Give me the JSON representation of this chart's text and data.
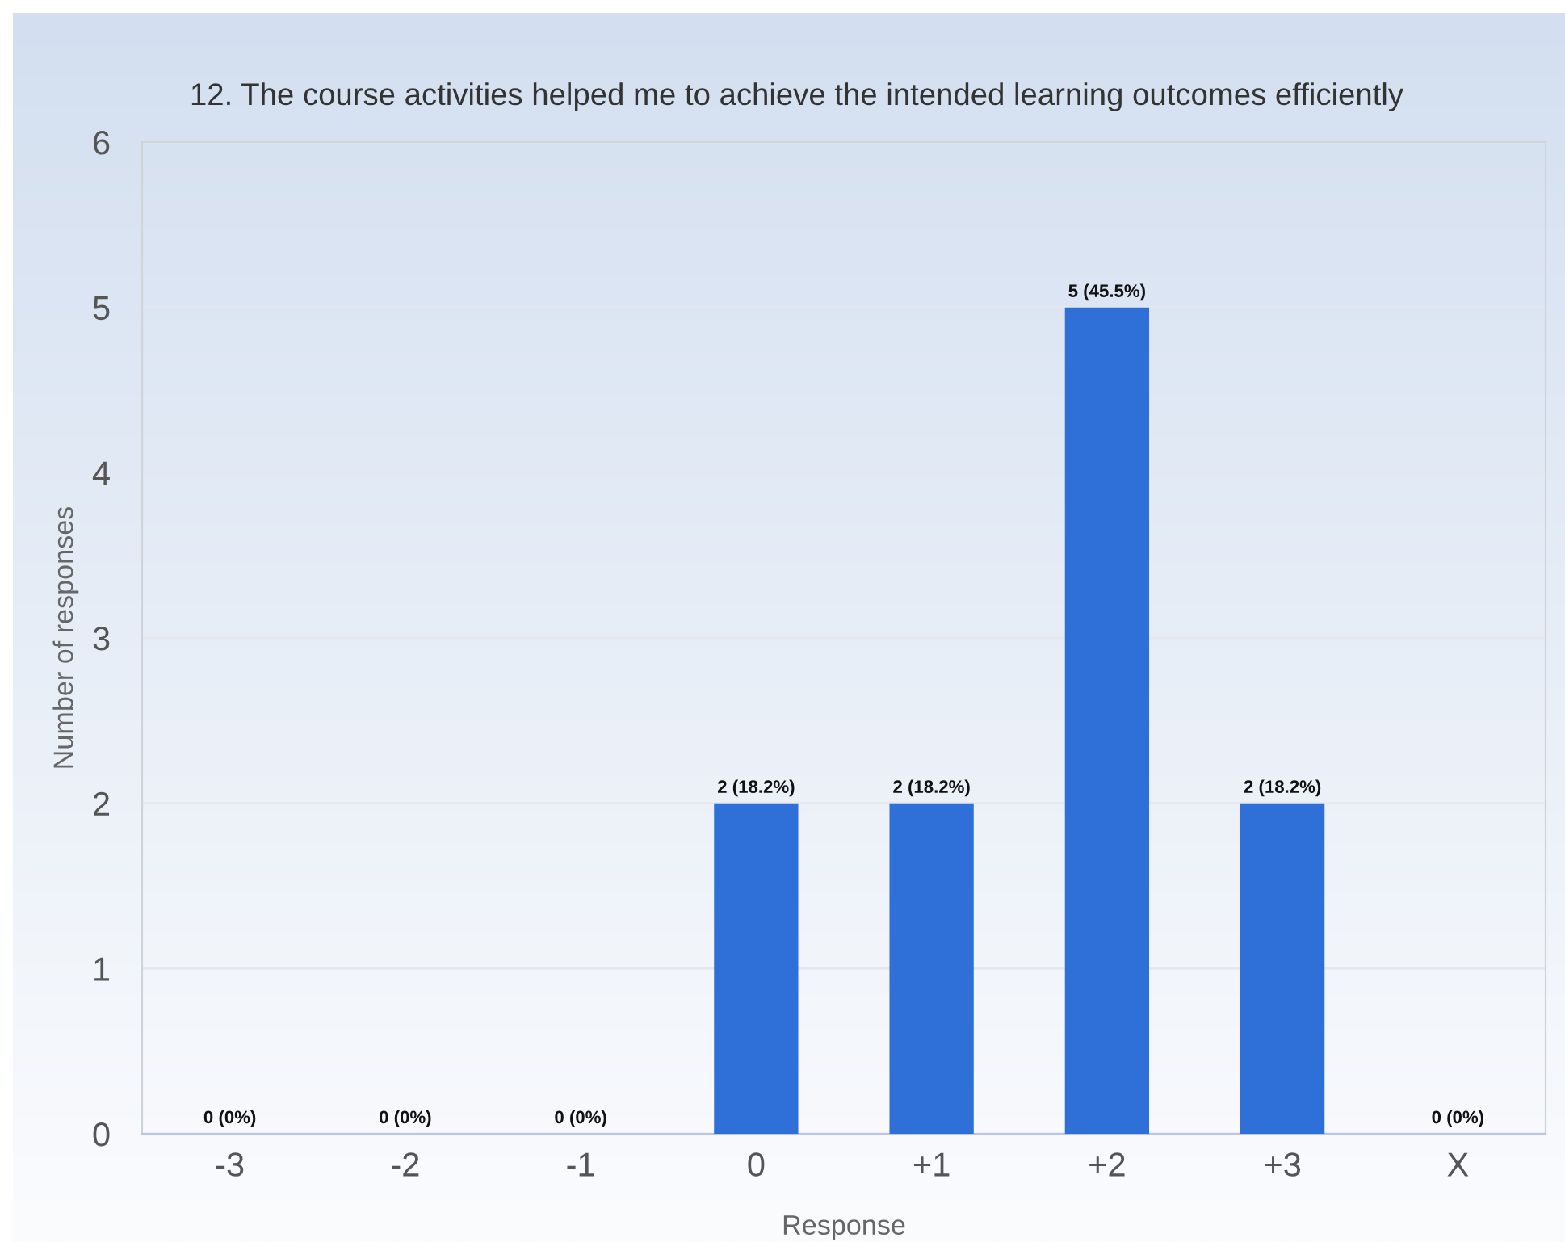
{
  "chart_data": {
    "type": "bar",
    "title": "12. The course activities helped me to achieve the intended learning outcomes efficiently",
    "xlabel": "Response",
    "ylabel": "Number of responses",
    "categories": [
      "-3",
      "-2",
      "-1",
      "0",
      "+1",
      "+2",
      "+3",
      "X"
    ],
    "values": [
      0,
      0,
      0,
      2,
      2,
      5,
      2,
      0
    ],
    "value_labels": [
      "0 (0%)",
      "0 (0%)",
      "0 (0%)",
      "2 (18.2%)",
      "2 (18.2%)",
      "5 (45.5%)",
      "2 (18.2%)",
      "0 (0%)"
    ],
    "color": "#2f6fd8",
    "ylim": [
      0,
      6
    ],
    "yticks": [
      0,
      1,
      2,
      3,
      4,
      5,
      6
    ],
    "grid": "y"
  }
}
